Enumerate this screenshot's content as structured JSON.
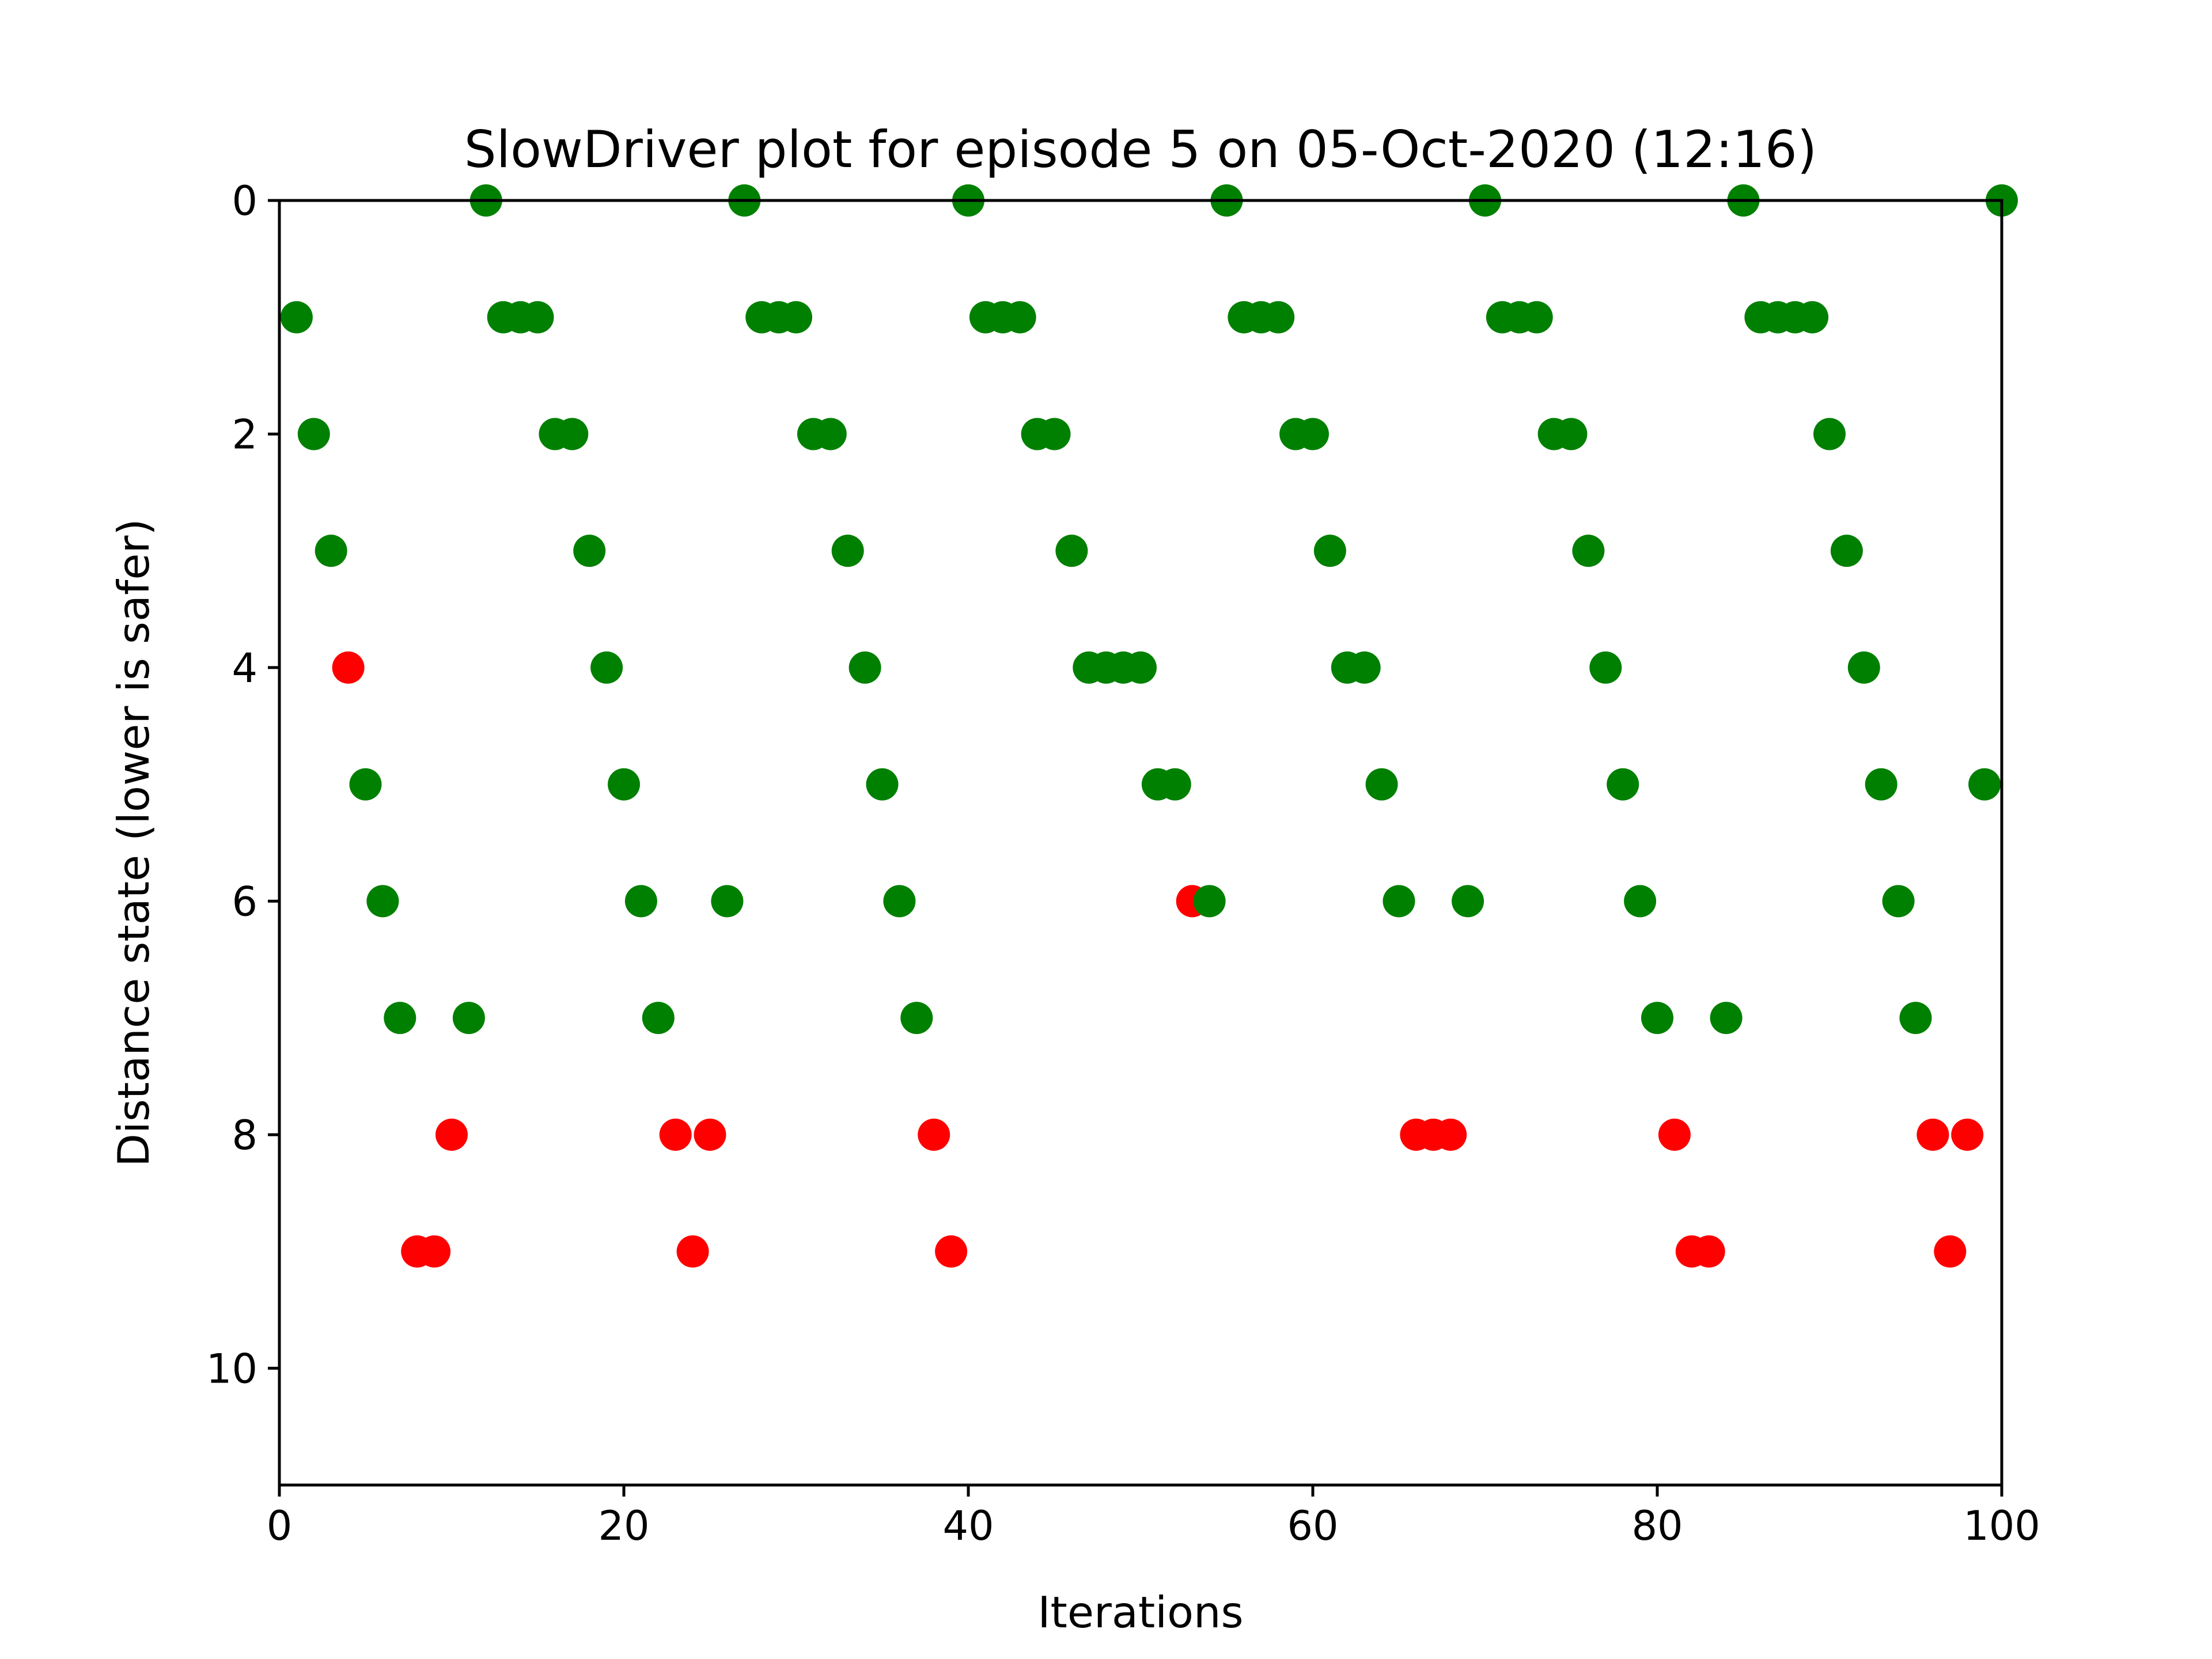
{
  "chart_data": {
    "type": "scatter",
    "title": "SlowDriver plot for episode 5 on 05-Oct-2020 (12:16)",
    "xlabel": "Iterations",
    "ylabel": "Distance state (lower is safer)",
    "xlim": [
      0,
      100
    ],
    "ylim": [
      11,
      0
    ],
    "y_inverted": true,
    "grid": false,
    "x_ticks": [
      0,
      20,
      40,
      60,
      80,
      100
    ],
    "y_ticks": [
      0,
      2,
      4,
      6,
      8,
      10
    ],
    "colors": {
      "safe": "#008000",
      "unsafe": "#ff0000"
    },
    "x": [
      1,
      2,
      3,
      4,
      5,
      6,
      7,
      8,
      9,
      10,
      11,
      12,
      13,
      14,
      15,
      16,
      17,
      18,
      19,
      20,
      21,
      22,
      23,
      24,
      25,
      26,
      27,
      28,
      29,
      30,
      31,
      32,
      33,
      34,
      35,
      36,
      37,
      38,
      39,
      40,
      41,
      42,
      43,
      44,
      45,
      46,
      47,
      48,
      49,
      50,
      51,
      52,
      53,
      54,
      55,
      56,
      57,
      58,
      59,
      60,
      61,
      62,
      63,
      64,
      65,
      66,
      67,
      68,
      69,
      70,
      71,
      72,
      73,
      74,
      75,
      76,
      77,
      78,
      79,
      80,
      81,
      82,
      83,
      84,
      85,
      86,
      87,
      88,
      89,
      90,
      91,
      92,
      93,
      94,
      95,
      96,
      97,
      98,
      99,
      100
    ],
    "y": [
      1,
      2,
      3,
      4,
      5,
      6,
      7,
      9,
      9,
      8,
      7,
      0,
      1,
      1,
      1,
      2,
      2,
      3,
      4,
      5,
      6,
      7,
      8,
      9,
      8,
      6,
      0,
      1,
      1,
      1,
      2,
      2,
      3,
      4,
      5,
      6,
      7,
      8,
      9,
      0,
      1,
      1,
      1,
      2,
      2,
      3,
      4,
      4,
      4,
      4,
      5,
      5,
      6,
      6,
      0,
      1,
      1,
      1,
      2,
      2,
      3,
      4,
      4,
      5,
      6,
      8,
      8,
      8,
      6,
      0,
      1,
      1,
      1,
      2,
      2,
      3,
      4,
      5,
      6,
      7,
      8,
      9,
      9,
      7,
      0,
      1,
      1,
      1,
      1,
      2,
      3,
      4,
      5,
      6,
      7,
      8,
      9,
      8,
      5,
      0
    ],
    "point_colors": [
      "green",
      "green",
      "green",
      "red",
      "green",
      "green",
      "green",
      "red",
      "red",
      "red",
      "green",
      "green",
      "green",
      "green",
      "green",
      "green",
      "green",
      "green",
      "green",
      "green",
      "green",
      "green",
      "red",
      "red",
      "red",
      "green",
      "green",
      "green",
      "green",
      "green",
      "green",
      "green",
      "green",
      "green",
      "green",
      "green",
      "green",
      "red",
      "red",
      "green",
      "green",
      "green",
      "green",
      "green",
      "green",
      "green",
      "green",
      "green",
      "green",
      "green",
      "green",
      "green",
      "red",
      "green",
      "green",
      "green",
      "green",
      "green",
      "green",
      "green",
      "green",
      "green",
      "green",
      "green",
      "green",
      "red",
      "red",
      "red",
      "green",
      "green",
      "green",
      "green",
      "green",
      "green",
      "green",
      "green",
      "green",
      "green",
      "green",
      "green",
      "red",
      "red",
      "red",
      "green",
      "green",
      "green",
      "green",
      "green",
      "green",
      "green",
      "green",
      "green",
      "green",
      "green",
      "green",
      "red",
      "red",
      "red",
      "green",
      "green"
    ]
  }
}
